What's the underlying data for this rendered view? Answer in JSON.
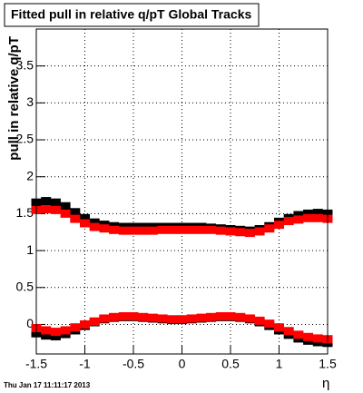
{
  "chart_data": {
    "type": "scatter",
    "title": "Fitted pull in relative q/pT  Global Tracks",
    "y_label": "pull in relative q/pT",
    "x_label": "η",
    "timestamp": "Thu Jan 17 11:11:17 2013",
    "x": [
      -1.5,
      -1.4,
      -1.3,
      -1.2,
      -1.1,
      -1.0,
      -0.9,
      -0.8,
      -0.7,
      -0.6,
      -0.5,
      -0.4,
      -0.3,
      -0.2,
      -0.1,
      0.0,
      0.1,
      0.2,
      0.3,
      0.4,
      0.5,
      0.6,
      0.7,
      0.8,
      0.9,
      1.0,
      1.1,
      1.2,
      1.3,
      1.4,
      1.5
    ],
    "series": [
      {
        "color": "#000000",
        "values": [
          1.65,
          1.67,
          1.65,
          1.6,
          1.52,
          1.44,
          1.38,
          1.35,
          1.33,
          1.32,
          1.32,
          1.32,
          1.32,
          1.32,
          1.32,
          1.32,
          1.32,
          1.32,
          1.31,
          1.3,
          1.29,
          1.28,
          1.27,
          1.29,
          1.33,
          1.39,
          1.44,
          1.48,
          1.5,
          1.51,
          1.5
        ]
      },
      {
        "color": "#000000",
        "values": [
          -0.12,
          -0.15,
          -0.16,
          -0.13,
          -0.08,
          -0.02,
          0.03,
          0.07,
          0.09,
          0.1,
          0.1,
          0.09,
          0.08,
          0.07,
          0.06,
          0.06,
          0.07,
          0.08,
          0.09,
          0.1,
          0.1,
          0.09,
          0.07,
          0.03,
          -0.02,
          -0.08,
          -0.14,
          -0.19,
          -0.22,
          -0.24,
          -0.25
        ]
      },
      {
        "color": "#ff0000",
        "values": [
          1.55,
          1.56,
          1.55,
          1.5,
          1.43,
          1.37,
          1.32,
          1.3,
          1.28,
          1.27,
          1.27,
          1.27,
          1.27,
          1.28,
          1.28,
          1.28,
          1.28,
          1.28,
          1.28,
          1.27,
          1.26,
          1.25,
          1.24,
          1.26,
          1.3,
          1.35,
          1.4,
          1.42,
          1.44,
          1.44,
          1.43
        ]
      },
      {
        "color": "#ff0000",
        "values": [
          -0.05,
          -0.08,
          -0.1,
          -0.08,
          -0.04,
          0.0,
          0.04,
          0.08,
          0.1,
          0.11,
          0.11,
          0.1,
          0.09,
          0.08,
          0.07,
          0.07,
          0.08,
          0.09,
          0.1,
          0.11,
          0.11,
          0.1,
          0.08,
          0.05,
          0.01,
          -0.04,
          -0.09,
          -0.14,
          -0.17,
          -0.19,
          -0.2
        ]
      }
    ],
    "xlim": [
      -1.5,
      1.5
    ],
    "ylim": [
      -0.4,
      4.0
    ],
    "xticks": [
      -1.5,
      -1,
      -0.5,
      0,
      0.5,
      1,
      1.5
    ],
    "yticks": [
      0,
      0.5,
      1,
      1.5,
      2,
      2.5,
      3,
      3.5
    ],
    "grid": true
  }
}
